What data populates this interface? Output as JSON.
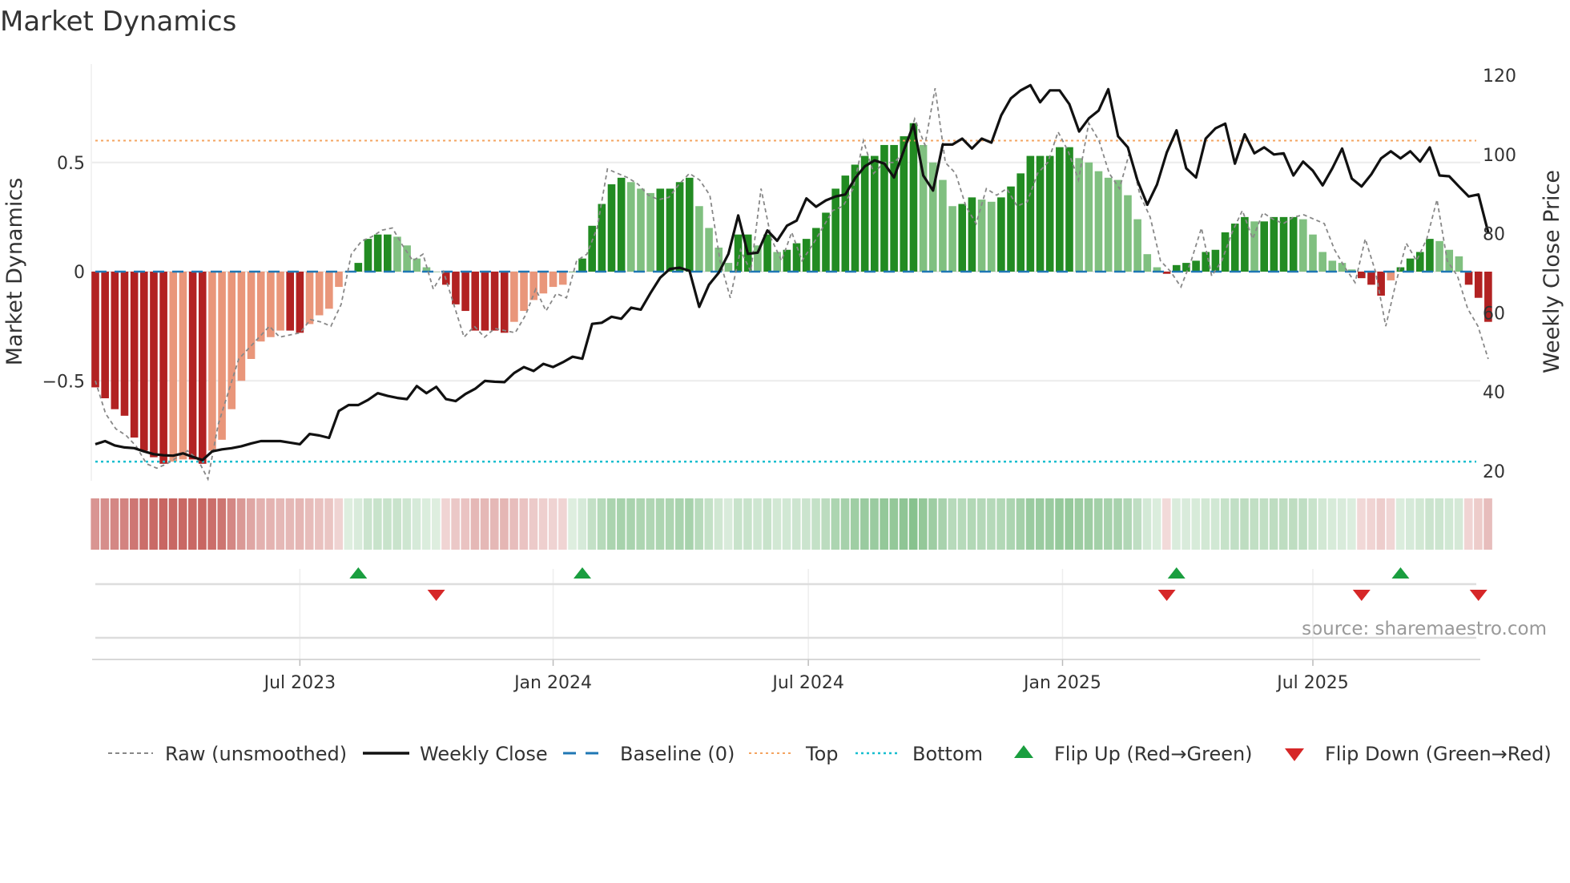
{
  "chart_data": {
    "type": "bar",
    "title": "Market Dynamics",
    "ylabel": "Market Dynamics",
    "y2label": "Weekly Close Price",
    "ylim": [
      -0.97,
      0.95
    ],
    "y2lim": [
      18,
      124
    ],
    "y_ticks": [
      {
        "label": "0.5",
        "value": 0.5
      },
      {
        "label": "0",
        "value": 0
      },
      {
        "label": "−0.5",
        "value": -0.5
      }
    ],
    "y2_ticks": [
      {
        "label": "120",
        "value": 120
      },
      {
        "label": "100",
        "value": 100
      },
      {
        "label": "80",
        "value": 80
      },
      {
        "label": "60",
        "value": 60
      },
      {
        "label": "40",
        "value": 40
      },
      {
        "label": "20",
        "value": 20
      }
    ],
    "x_ticks": [
      {
        "label": "Jul 2023",
        "week": 21
      },
      {
        "label": "Jan 2024",
        "week": 47
      },
      {
        "label": "Jul 2024",
        "week": 73.2
      },
      {
        "label": "Jan 2025",
        "week": 99.3
      },
      {
        "label": "Jul 2025",
        "week": 125
      }
    ],
    "top_level": 0.6,
    "bottom_level": -0.87,
    "baseline": 0,
    "smoothed": [
      -0.53,
      -0.58,
      -0.63,
      -0.66,
      -0.76,
      -0.82,
      -0.85,
      -0.88,
      -0.87,
      -0.86,
      -0.86,
      -0.88,
      -0.82,
      -0.77,
      -0.63,
      -0.5,
      -0.4,
      -0.32,
      -0.3,
      -0.27,
      -0.27,
      -0.28,
      -0.24,
      -0.2,
      -0.17,
      -0.07,
      0,
      0.04,
      0.15,
      0.17,
      0.17,
      0.16,
      0.12,
      0.06,
      0.02,
      0,
      -0.06,
      -0.15,
      -0.18,
      -0.27,
      -0.27,
      -0.27,
      -0.28,
      -0.23,
      -0.18,
      -0.13,
      -0.1,
      -0.07,
      -0.06,
      0,
      0.06,
      0.21,
      0.31,
      0.4,
      0.43,
      0.41,
      0.38,
      0.36,
      0.38,
      0.38,
      0.41,
      0.43,
      0.3,
      0.2,
      0.11,
      0.04,
      0.17,
      0.17,
      0.12,
      0.17,
      0.09,
      0.1,
      0.13,
      0.15,
      0.2,
      0.27,
      0.38,
      0.44,
      0.49,
      0.53,
      0.53,
      0.58,
      0.58,
      0.62,
      0.68,
      0.58,
      0.5,
      0.42,
      0.3,
      0.31,
      0.34,
      0.33,
      0.32,
      0.34,
      0.39,
      0.45,
      0.53,
      0.53,
      0.53,
      0.57,
      0.57,
      0.52,
      0.5,
      0.46,
      0.43,
      0.42,
      0.35,
      0.24,
      0.08,
      0.02,
      -0.01,
      0.03,
      0.04,
      0.05,
      0.09,
      0.1,
      0.18,
      0.22,
      0.25,
      0.23,
      0.23,
      0.25,
      0.25,
      0.25,
      0.24,
      0.17,
      0.09,
      0.05,
      0.04,
      0.01,
      -0.03,
      -0.06,
      -0.11,
      -0.04,
      0.02,
      0.06,
      0.09,
      0.15,
      0.14,
      0.1,
      0.07,
      -0.06,
      -0.12,
      -0.23
    ],
    "raw": [
      -0.5,
      -0.65,
      -0.72,
      -0.75,
      -0.8,
      -0.88,
      -0.9,
      -0.88,
      -0.85,
      -0.82,
      -0.86,
      -0.95,
      -0.7,
      -0.55,
      -0.4,
      -0.35,
      -0.3,
      -0.25,
      -0.3,
      -0.29,
      -0.28,
      -0.22,
      -0.23,
      -0.25,
      -0.15,
      0.08,
      0.14,
      0.16,
      0.19,
      0.2,
      0.12,
      0.05,
      0.08,
      -0.08,
      0,
      -0.15,
      -0.3,
      -0.25,
      -0.3,
      -0.26,
      -0.27,
      -0.28,
      -0.2,
      -0.08,
      -0.18,
      -0.1,
      -0.12,
      0.05,
      0.08,
      0.2,
      0.47,
      0.45,
      0.43,
      0.4,
      0.35,
      0.33,
      0.34,
      0.4,
      0.45,
      0.42,
      0.35,
      0.05,
      -0.12,
      0.1,
      0,
      0.38,
      0.15,
      0.05,
      0.18,
      0.05,
      0.12,
      0.2,
      0.28,
      0.3,
      0.38,
      0.6,
      0.45,
      0.5,
      0.5,
      0.55,
      0.7,
      0.58,
      0.84,
      0.5,
      0.45,
      0.3,
      0.22,
      0.38,
      0.35,
      0.38,
      0.3,
      0.32,
      0.45,
      0.5,
      0.64,
      0.55,
      0.42,
      0.68,
      0.6,
      0.45,
      0.38,
      0.55,
      0.35,
      0.25,
      0.05,
      0,
      -0.07,
      0.05,
      0.2,
      -0.02,
      0.05,
      0.18,
      0.28,
      0.15,
      0.27,
      0.24,
      0.22,
      0.25,
      0.26,
      0.24,
      0.22,
      0.1,
      0.02,
      -0.05,
      0.15,
      0,
      -0.25,
      -0.05,
      0.13,
      0.05,
      0.15,
      0.33,
      0.05,
      -0.02,
      -0.17,
      -0.25,
      -0.4
    ],
    "weekly_close": [
      26.8,
      27.6,
      26.5,
      26,
      25.8,
      25,
      24.3,
      24,
      23.9,
      24.5,
      23.6,
      22.8,
      25,
      25.5,
      25.8,
      26.3,
      27,
      27.6,
      27.6,
      27.6,
      27.2,
      26.8,
      29.4,
      29,
      28.4,
      35.2,
      36.7,
      36.7,
      38,
      39.7,
      39,
      38.5,
      38.2,
      41.5,
      39.7,
      41.3,
      38.2,
      37.7,
      39.5,
      40.8,
      42.8,
      42.6,
      42.5,
      44.8,
      46.3,
      45.3,
      47.1,
      46.3,
      47.5,
      48.9,
      48.4,
      57.2,
      57.5,
      59,
      58.5,
      61.3,
      60.8,
      65,
      68.9,
      71.1,
      71.4,
      70.6,
      61.5,
      67.1,
      70.1,
      74.9,
      84.6,
      74.9,
      75.2,
      80.8,
      78.2,
      82,
      83.3,
      88.9,
      86.8,
      88.4,
      89.4,
      89.9,
      94,
      97,
      98.5,
      97.7,
      94.2,
      101,
      107.6,
      94.7,
      90.9,
      102.5,
      102.5,
      104,
      101.5,
      104,
      103,
      109.9,
      114.2,
      116.2,
      117.5,
      113.2,
      116.2,
      116.2,
      112.7,
      105.8,
      109.1,
      111.1,
      116.5,
      104.6,
      101.8,
      93.4,
      87.3,
      92.4,
      100.5,
      106.1,
      96.5,
      94.2,
      104,
      106.6,
      107.8,
      97.7,
      105.1,
      100.3,
      101.8,
      100,
      100.3,
      94.7,
      98.2,
      95.9,
      92.2,
      96.5,
      101.5,
      93.9,
      91.9,
      95,
      99,
      100.8,
      99,
      100.8,
      98.2,
      101.8,
      94.7,
      94.5,
      91.9,
      89.4,
      89.9,
      80.3
    ],
    "flip_up_weeks": [
      27,
      50,
      111,
      134
    ],
    "flip_down_weeks": [
      35,
      110,
      130,
      142
    ],
    "legend": {
      "placement": "bottom",
      "items": [
        {
          "label": "Raw (unsmoothed)",
          "kind": "raw"
        },
        {
          "label": "Weekly Close",
          "kind": "close"
        },
        {
          "label": "Baseline (0)",
          "kind": "baseline"
        },
        {
          "label": "Top",
          "kind": "top"
        },
        {
          "label": "Bottom",
          "kind": "bottom"
        },
        {
          "label": "Flip Up (Red→Green)",
          "kind": "up"
        },
        {
          "label": "Flip Down (Green→Red)",
          "kind": "down"
        }
      ]
    },
    "source": "source: sharemaestro.com"
  },
  "colors": {
    "pos_strong": "#228b22",
    "pos_weak": "#80c080",
    "neg_strong": "#b22222",
    "neg_weak": "#e9967a",
    "close": "#111111",
    "raw": "#888888",
    "baseline": "#1f77b4",
    "top": "#f4a460",
    "bottom": "#17becf",
    "flip_up": "#1a9e3f",
    "flip_down": "#d62728"
  }
}
